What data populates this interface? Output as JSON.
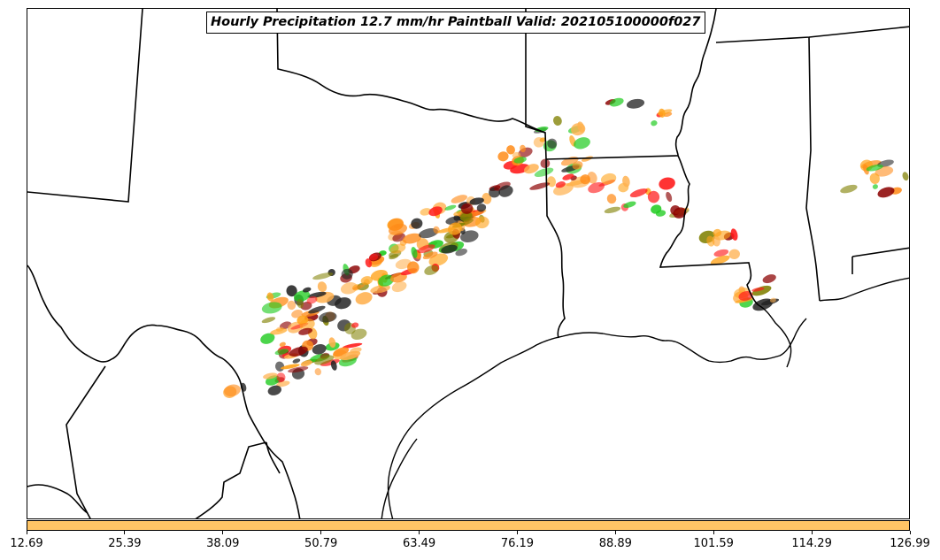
{
  "title": "Hourly Precipitation 12.7 mm/hr Paintball Valid: 202105100000f027",
  "colorbar": {
    "color": "#ffc566",
    "ticks": [
      "12.69",
      "25.39",
      "38.09",
      "50.79",
      "63.49",
      "76.19",
      "88.89",
      "101.59",
      "114.29",
      "126.99"
    ]
  },
  "paint_colors": [
    "#ff8c1a",
    "#ff1a1a",
    "#1ecb1e",
    "#808000",
    "#8b0000",
    "#222222",
    "#ffa31a",
    "#ffb04d"
  ],
  "map_layers": [
    "state-borders",
    "coastline",
    "paintball-precipitation-blobs"
  ]
}
